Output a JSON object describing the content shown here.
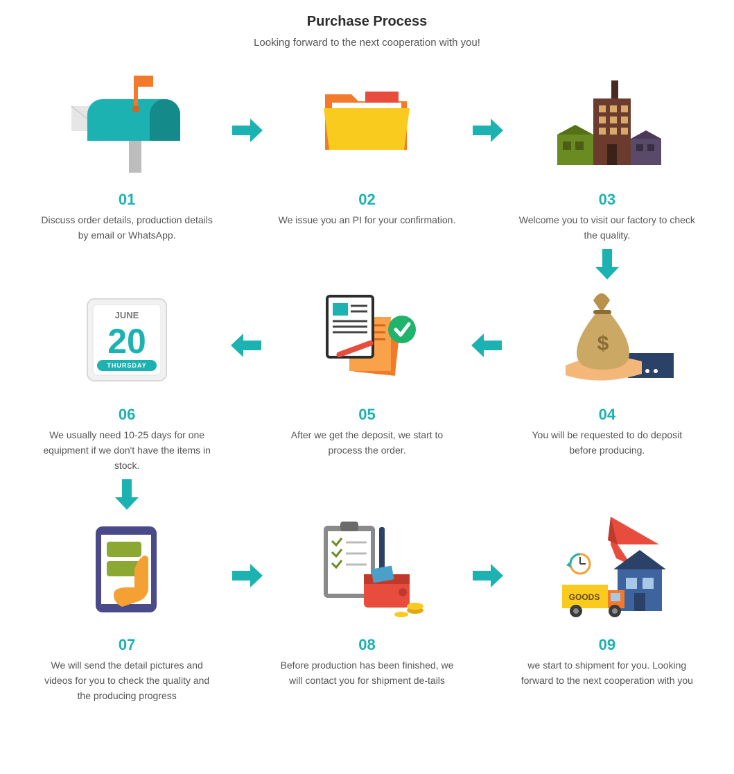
{
  "type": "infographic",
  "layout": "3x3-serpentine-process",
  "background_color": "#ffffff",
  "header": {
    "title": "Purchase Process",
    "subtitle": "Looking forward to the next cooperation with you!",
    "title_color": "#2c2c2c",
    "subtitle_color": "#555555",
    "title_fontsize": 20,
    "subtitle_fontsize": 15
  },
  "steps": {
    "s1": {
      "num": "01",
      "text": "Discuss order details, production details by email or WhatsApp.",
      "num_color": "#1cb2b2",
      "icon": "mailbox"
    },
    "s2": {
      "num": "02",
      "text": "We issue you an PI for your confirmation.",
      "num_color": "#1cb2b2",
      "icon": "folder"
    },
    "s3": {
      "num": "03",
      "text": "Welcome you to visit our factory to check the quality.",
      "num_color": "#1cb2b2",
      "icon": "factory"
    },
    "s4": {
      "num": "04",
      "text": "You will be requested to do deposit before producing.",
      "num_color": "#1cb2b2",
      "icon": "money-bag"
    },
    "s5": {
      "num": "05",
      "text": "After we get the deposit, we start to process the order.",
      "num_color": "#1cb2b2",
      "icon": "document-check"
    },
    "s6": {
      "num": "06",
      "text": "We usually need 10-25 days for one equipment if we don't have the items in stock.",
      "num_color": "#1cb2b2",
      "icon": "calendar",
      "calendar_month": "JUNE",
      "calendar_day": "20",
      "calendar_weekday": "THURSDAY"
    },
    "s7": {
      "num": "07",
      "text": "We will send the detail pictures and videos for you to check the quality and the producing progress",
      "num_color": "#1cb2b2",
      "icon": "tablet-touch"
    },
    "s8": {
      "num": "08",
      "text": "Before production has been finished, we will contact you for shipment de-tails",
      "num_color": "#1cb2b2",
      "icon": "checklist-wallet"
    },
    "s9": {
      "num": "09",
      "text": "we start to shipment for you. Looking forward to the next cooperation with you",
      "num_color": "#1cb2b2",
      "icon": "shipping",
      "shipping_label": "GOODS"
    }
  },
  "arrows": {
    "color": "#1cb2b2",
    "a12": "right",
    "a23": "right",
    "a34": "down",
    "a45": "left",
    "a56": "left",
    "a67": "down",
    "a78": "right",
    "a89": "right"
  },
  "palette": {
    "teal": "#1cb2b2",
    "teal_dark": "#148a8a",
    "orange": "#f37a2a",
    "orange_dark": "#d9651a",
    "yellow": "#f9cb1f",
    "red": "#e84c3d",
    "brown": "#6b3c2e",
    "brown_dark": "#4a2a20",
    "green_olive": "#6a8a22",
    "tan": "#cba864",
    "tan_dark": "#b8924c",
    "navy": "#2b4168",
    "grey_light": "#e6e6e6",
    "grey": "#bdbdbd",
    "grey_dark": "#7a7a7a",
    "white": "#ffffff",
    "green_check": "#1fb36b",
    "blue_house": "#3e64a0",
    "purple": "#4a4a8a"
  },
  "typography": {
    "step_num_fontsize": 22,
    "step_num_weight": 700,
    "step_text_fontsize": 14,
    "step_text_color": "#555555"
  }
}
